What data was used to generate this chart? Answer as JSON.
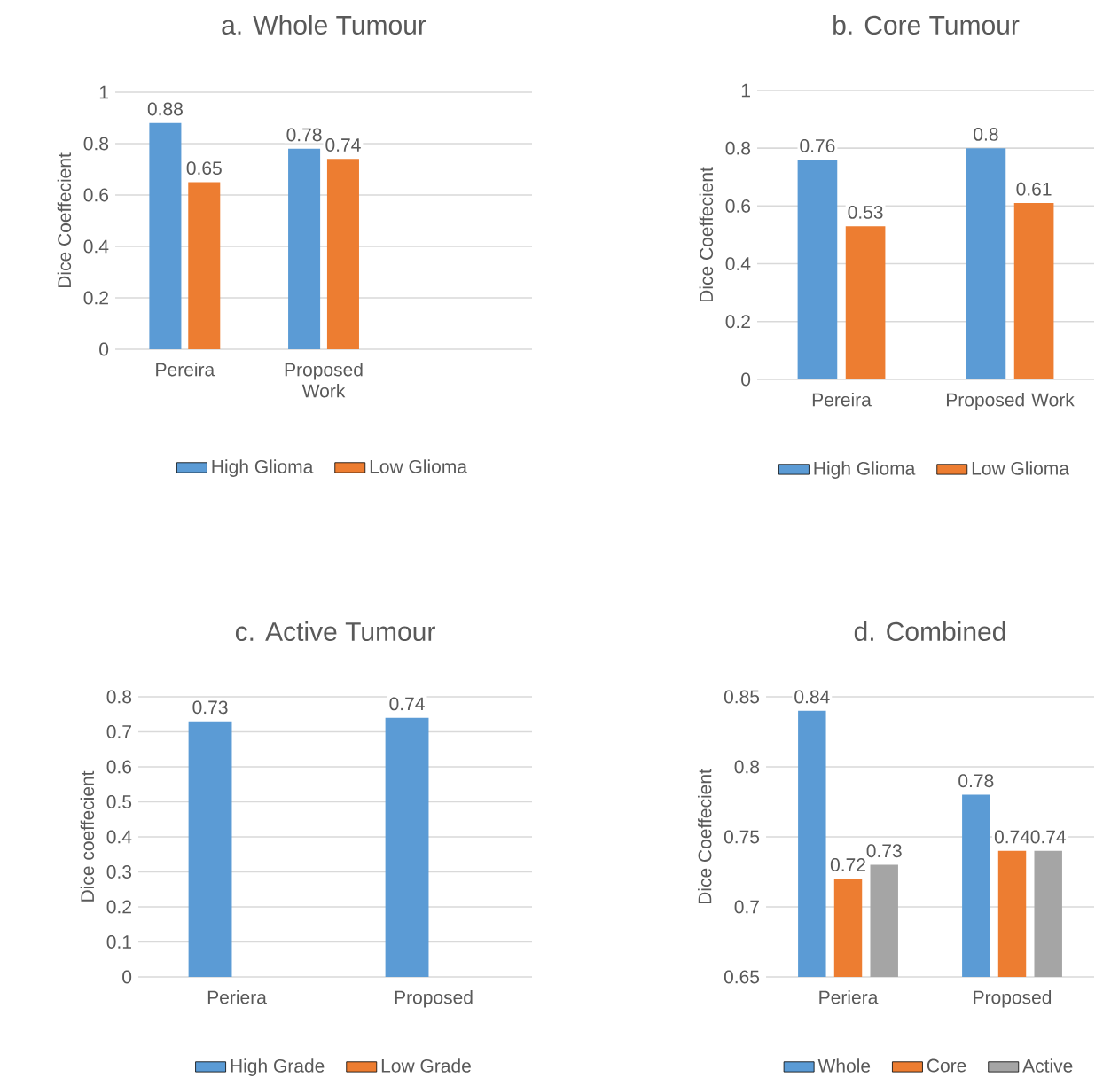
{
  "chart_data": [
    {
      "type": "bar",
      "title": "a. Whole Tumour",
      "ylabel": "Dice Coeffecient",
      "categories": [
        "Pereira",
        "Proposed Work",
        null
      ],
      "ylim": [
        0,
        1
      ],
      "yticks": [
        0,
        0.2,
        0.4,
        0.6,
        0.8,
        1
      ],
      "grid": "y",
      "legend": "bottom",
      "series": [
        {
          "name": "High Glioma",
          "color": "#5b9bd5",
          "values": [
            0.88,
            0.78,
            null
          ],
          "value_labels": [
            "0.88",
            "0.78",
            null
          ]
        },
        {
          "name": "Low Glioma",
          "color": "#ed7d31",
          "values": [
            0.65,
            0.74,
            null
          ],
          "value_labels": [
            "0.65",
            "0.74",
            null
          ]
        }
      ]
    },
    {
      "type": "bar",
      "title": "b. Core Tumour",
      "ylabel": "Dice Coeffecient",
      "categories": [
        "Pereira",
        "Proposed Work"
      ],
      "ylim": [
        0,
        1
      ],
      "yticks": [
        0,
        0.2,
        0.4,
        0.6,
        0.8,
        1
      ],
      "grid": "y",
      "legend": "bottom",
      "series": [
        {
          "name": "High Glioma",
          "color": "#5b9bd5",
          "values": [
            0.76,
            0.8
          ],
          "value_labels": [
            "0.76",
            "0.8"
          ]
        },
        {
          "name": "Low Glioma",
          "color": "#ed7d31",
          "values": [
            0.53,
            0.61
          ],
          "value_labels": [
            "0.53",
            "0.61"
          ]
        }
      ]
    },
    {
      "type": "bar",
      "title": "c. Active Tumour",
      "ylabel": "Dice coeffecient",
      "categories": [
        "Periera",
        "Proposed"
      ],
      "ylim": [
        0,
        0.8
      ],
      "yticks": [
        0,
        0.1,
        0.2,
        0.3,
        0.4,
        0.5,
        0.6,
        0.7,
        0.8
      ],
      "grid": "y",
      "legend": "bottom",
      "series": [
        {
          "name": "High Grade",
          "color": "#5b9bd5",
          "values": [
            0.73,
            0.74
          ],
          "value_labels": [
            "0.73",
            "0.74"
          ]
        },
        {
          "name": "Low Grade",
          "color": "#ed7d31",
          "values": [
            null,
            null
          ]
        }
      ]
    },
    {
      "type": "bar",
      "title": "d. Combined",
      "ylabel": "Dice Coeffecient",
      "categories": [
        "Periera",
        "Proposed"
      ],
      "ylim": [
        0.65,
        0.85
      ],
      "yticks": [
        0.65,
        0.7,
        0.75,
        0.8,
        0.85
      ],
      "grid": "y",
      "legend": "bottom",
      "series": [
        {
          "name": "Whole",
          "color": "#5b9bd5",
          "values": [
            0.84,
            0.78
          ],
          "value_labels": [
            "0.84",
            "0.78"
          ]
        },
        {
          "name": "Core",
          "color": "#ed7d31",
          "values": [
            0.72,
            0.74
          ],
          "value_labels": [
            "0.72",
            "0.74"
          ]
        },
        {
          "name": "Active",
          "color": "#a5a5a5",
          "values": [
            0.73,
            0.74
          ],
          "value_labels": [
            "0.73",
            "0.74"
          ]
        }
      ]
    }
  ]
}
